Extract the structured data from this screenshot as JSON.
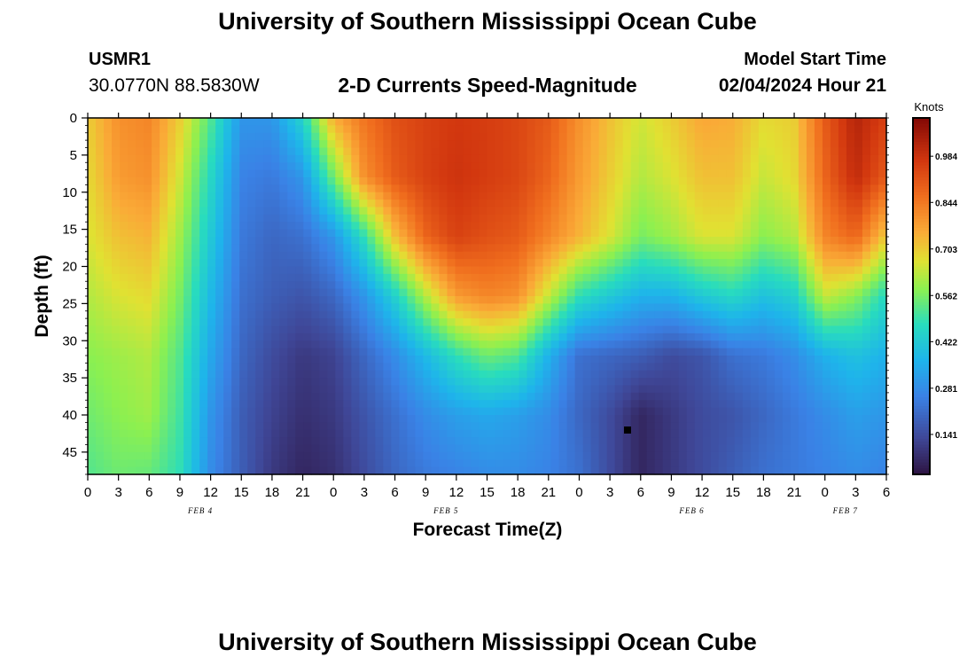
{
  "header": {
    "title_top": "University of Southern Mississippi Ocean Cube",
    "title_bottom": "University of Southern Mississippi Ocean Cube",
    "station_id": "USMR1",
    "station_coords": "30.0770N  88.5830W",
    "subtitle": "2-D Currents Speed-Magnitude",
    "model_start_label": "Model Start Time",
    "model_start_value": "02/04/2024 Hour 21"
  },
  "chart_data": {
    "type": "heatmap",
    "title": "2-D Currents Speed-Magnitude",
    "xlabel": "Forecast Time(Z)",
    "ylabel": "Depth (ft)",
    "x_hours_range": [
      0,
      78
    ],
    "x_tick_labels": [
      "0",
      "3",
      "6",
      "9",
      "12",
      "15",
      "18",
      "21",
      "0",
      "3",
      "6",
      "9",
      "12",
      "15",
      "18",
      "21",
      "0",
      "3",
      "6",
      "9",
      "12",
      "15",
      "18",
      "21",
      "0",
      "3",
      "6"
    ],
    "x_tick_step_hours": 3,
    "date_labels": [
      {
        "label": "FEB 4",
        "hour": 11
      },
      {
        "label": "FEB 5",
        "hour": 35
      },
      {
        "label": "FEB 6",
        "hour": 59
      },
      {
        "label": "FEB 7",
        "hour": 74
      }
    ],
    "depth_range_ft": [
      0,
      48
    ],
    "y_ticks": [
      0,
      5,
      10,
      15,
      20,
      25,
      30,
      35,
      40,
      45
    ],
    "colorbar": {
      "title": "Knots",
      "ticks": [
        0.141,
        0.281,
        0.422,
        0.562,
        0.703,
        0.844,
        0.984
      ],
      "range": [
        0.02,
        1.1
      ]
    },
    "grid_rows_depth_ft": [
      0,
      8,
      16,
      24,
      32,
      40,
      48
    ],
    "grid_cols_hours": [
      0,
      3,
      6,
      9,
      12,
      15,
      18,
      21,
      24,
      27,
      30,
      33,
      36,
      39,
      42,
      45,
      48,
      51,
      54,
      57,
      60,
      63,
      66,
      69,
      72,
      75,
      78
    ],
    "speed_knots": [
      [
        0.7,
        0.8,
        0.82,
        0.7,
        0.52,
        0.3,
        0.3,
        0.45,
        0.75,
        0.85,
        0.92,
        0.95,
        0.97,
        0.96,
        0.94,
        0.9,
        0.8,
        0.72,
        0.65,
        0.7,
        0.76,
        0.75,
        0.68,
        0.7,
        0.9,
        1.02,
        0.95
      ],
      [
        0.68,
        0.78,
        0.8,
        0.65,
        0.46,
        0.26,
        0.24,
        0.3,
        0.55,
        0.8,
        0.9,
        0.95,
        0.98,
        0.96,
        0.94,
        0.88,
        0.78,
        0.7,
        0.62,
        0.66,
        0.72,
        0.72,
        0.64,
        0.68,
        0.88,
        1.0,
        0.9
      ],
      [
        0.66,
        0.72,
        0.74,
        0.6,
        0.42,
        0.24,
        0.2,
        0.22,
        0.3,
        0.48,
        0.72,
        0.88,
        0.95,
        0.92,
        0.9,
        0.82,
        0.74,
        0.66,
        0.56,
        0.6,
        0.66,
        0.66,
        0.58,
        0.62,
        0.82,
        0.88,
        0.7
      ],
      [
        0.62,
        0.66,
        0.68,
        0.56,
        0.38,
        0.22,
        0.18,
        0.16,
        0.2,
        0.3,
        0.44,
        0.62,
        0.78,
        0.82,
        0.8,
        0.64,
        0.48,
        0.42,
        0.36,
        0.36,
        0.42,
        0.46,
        0.4,
        0.44,
        0.64,
        0.58,
        0.46
      ],
      [
        0.58,
        0.6,
        0.62,
        0.52,
        0.34,
        0.2,
        0.14,
        0.1,
        0.12,
        0.2,
        0.28,
        0.38,
        0.48,
        0.55,
        0.52,
        0.36,
        0.22,
        0.2,
        0.18,
        0.14,
        0.16,
        0.22,
        0.24,
        0.28,
        0.36,
        0.4,
        0.36
      ],
      [
        0.55,
        0.58,
        0.6,
        0.5,
        0.3,
        0.18,
        0.12,
        0.08,
        0.1,
        0.16,
        0.22,
        0.28,
        0.32,
        0.34,
        0.32,
        0.28,
        0.2,
        0.14,
        0.06,
        0.1,
        0.14,
        0.16,
        0.2,
        0.24,
        0.28,
        0.32,
        0.3
      ],
      [
        0.52,
        0.55,
        0.54,
        0.48,
        0.28,
        0.18,
        0.1,
        0.06,
        0.08,
        0.14,
        0.2,
        0.24,
        0.26,
        0.28,
        0.28,
        0.26,
        0.22,
        0.14,
        0.06,
        0.1,
        0.14,
        0.18,
        0.22,
        0.24,
        0.26,
        0.28,
        0.26
      ]
    ]
  }
}
